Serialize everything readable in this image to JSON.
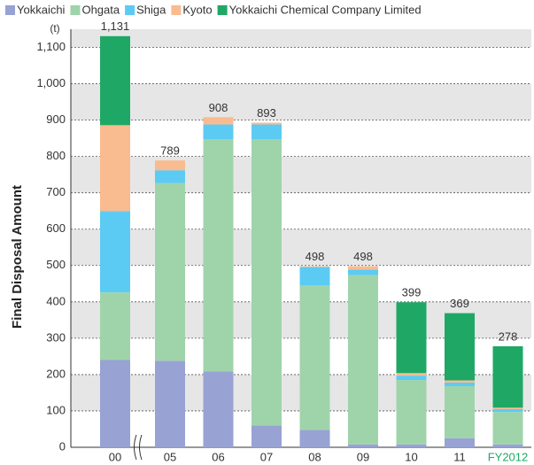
{
  "chart_data": {
    "type": "stacked-bar",
    "y_label": "Final Disposal Amount",
    "y_unit": "(t)",
    "categories": [
      "00",
      "05",
      "06",
      "07",
      "08",
      "09",
      "10",
      "11",
      "FY2012"
    ],
    "series": [
      {
        "name": "Yokkaichi",
        "color": "#98a2d3",
        "values": [
          240,
          238,
          209,
          60,
          48,
          8,
          8,
          25,
          8
        ]
      },
      {
        "name": "Ohgata",
        "color": "#9fd4ab",
        "values": [
          186,
          489,
          638,
          787,
          397,
          466,
          177,
          143,
          89
        ]
      },
      {
        "name": "Shiga",
        "color": "#5ccbf4",
        "values": [
          224,
          35,
          41,
          41,
          51,
          15,
          12,
          10,
          8
        ]
      },
      {
        "name": "Kyoto",
        "color": "#f9bb90",
        "values": [
          236,
          27,
          20,
          5,
          2,
          9,
          7,
          6,
          4
        ]
      },
      {
        "name": "Yokkaichi Chemical Company Limited",
        "color": "#1fa865",
        "values": [
          245,
          0,
          0,
          0,
          0,
          0,
          195,
          185,
          169
        ]
      }
    ],
    "totals": [
      1131,
      789,
      908,
      893,
      498,
      498,
      399,
      369,
      278
    ],
    "total_labels": [
      "1,131",
      "789",
      "908",
      "893",
      "498",
      "498",
      "399",
      "369",
      "278"
    ],
    "ylim": [
      0,
      1150
    ],
    "yticks": [
      0,
      100,
      200,
      300,
      400,
      500,
      600,
      700,
      800,
      900,
      {
        "value": 1000,
        "label": "1,000"
      },
      {
        "value": 1100,
        "label": "1,100"
      }
    ],
    "grid": true
  }
}
